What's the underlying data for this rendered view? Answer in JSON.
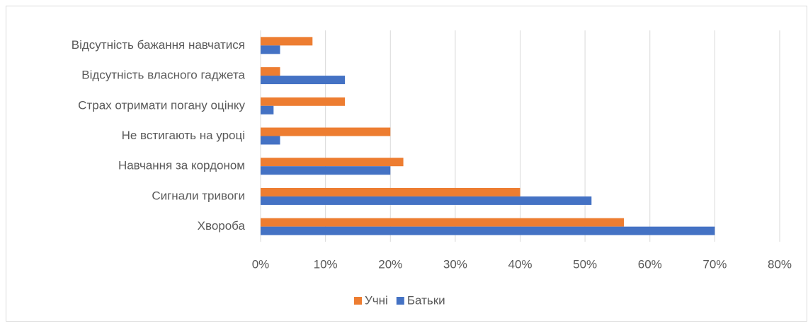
{
  "chart_data": {
    "type": "bar",
    "orientation": "horizontal",
    "categories": [
      "Відсутність бажання навчатися",
      "Відсутність власного гаджета",
      "Страх отримати погану оцінку",
      "Не встигають на уроці",
      "Навчання за кордоном",
      "Сигнали тривоги",
      "Хвороба"
    ],
    "series": [
      {
        "name": "Учні",
        "color": "#ed7d31",
        "values": [
          8,
          3,
          13,
          20,
          22,
          40,
          56
        ]
      },
      {
        "name": "Батьки",
        "color": "#4472c4",
        "values": [
          3,
          13,
          2,
          3,
          20,
          51,
          70
        ]
      }
    ],
    "xlim": [
      0,
      80
    ],
    "xticks": [
      {
        "value": 0,
        "label": "0%"
      },
      {
        "value": 10,
        "label": "10%"
      },
      {
        "value": 20,
        "label": "20%"
      },
      {
        "value": 30,
        "label": "30%"
      },
      {
        "value": 40,
        "label": "40%"
      },
      {
        "value": 50,
        "label": "50%"
      },
      {
        "value": 60,
        "label": "60%"
      },
      {
        "value": 70,
        "label": "70%"
      },
      {
        "value": 80,
        "label": "80%"
      }
    ],
    "grid": true,
    "legend": "bottom"
  }
}
